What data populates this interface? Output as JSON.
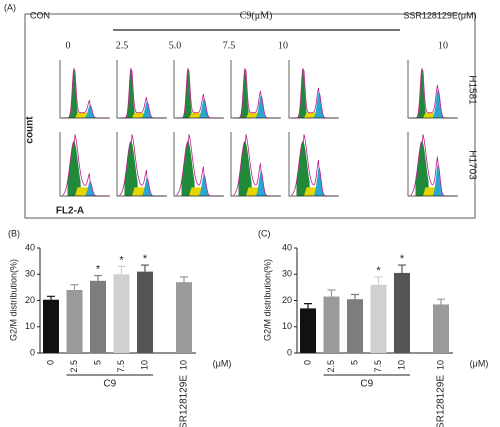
{
  "panel_a": {
    "label": "(A)",
    "groups": [
      "CON",
      "C9(μM)",
      "SSR128129E(μM)"
    ],
    "concentrations": [
      "0",
      "2.5",
      "5.0",
      "7.5",
      "10",
      "10"
    ],
    "cell_lines": [
      "H1581",
      "H1703"
    ],
    "y_label": "count",
    "x_label": "FL2-A"
  },
  "chart_data": [
    {
      "type": "bar",
      "label": "(B)",
      "ylabel": "G2/M distribution(%)",
      "categories": [
        "0",
        "2.5",
        "5",
        "7.5",
        "10",
        "10"
      ],
      "values": [
        20.3,
        24,
        27.5,
        30,
        31,
        27
      ],
      "errors": [
        1.3,
        2,
        2,
        3,
        2.5,
        2
      ],
      "significance": [
        null,
        null,
        "*",
        "*",
        "*",
        null
      ],
      "colors": [
        "#111111",
        "#9a9a9a",
        "#7d7d7d",
        "#d0d0d0",
        "#555555",
        "#9a9a9a"
      ],
      "ylim": [
        0,
        40
      ],
      "yticks": [
        0,
        10,
        20,
        30,
        40
      ],
      "group_labels": [
        "C9",
        "SSR128129E"
      ],
      "unit": "(μM)"
    },
    {
      "type": "bar",
      "label": "(C)",
      "ylabel": "G2/M distribution(%)",
      "categories": [
        "0",
        "2.5",
        "5",
        "7.5",
        "10",
        "10"
      ],
      "values": [
        17,
        21.5,
        20.5,
        26,
        30.5,
        18.5
      ],
      "errors": [
        1.8,
        2.5,
        1.8,
        3,
        3,
        2
      ],
      "significance": [
        null,
        null,
        null,
        "*",
        "*",
        null
      ],
      "colors": [
        "#111111",
        "#9a9a9a",
        "#7d7d7d",
        "#d0d0d0",
        "#555555",
        "#9a9a9a"
      ],
      "ylim": [
        0,
        40
      ],
      "yticks": [
        0,
        10,
        20,
        30,
        40
      ],
      "group_labels": [
        "C9",
        "SSR128129E"
      ],
      "unit": "(μM)"
    }
  ]
}
